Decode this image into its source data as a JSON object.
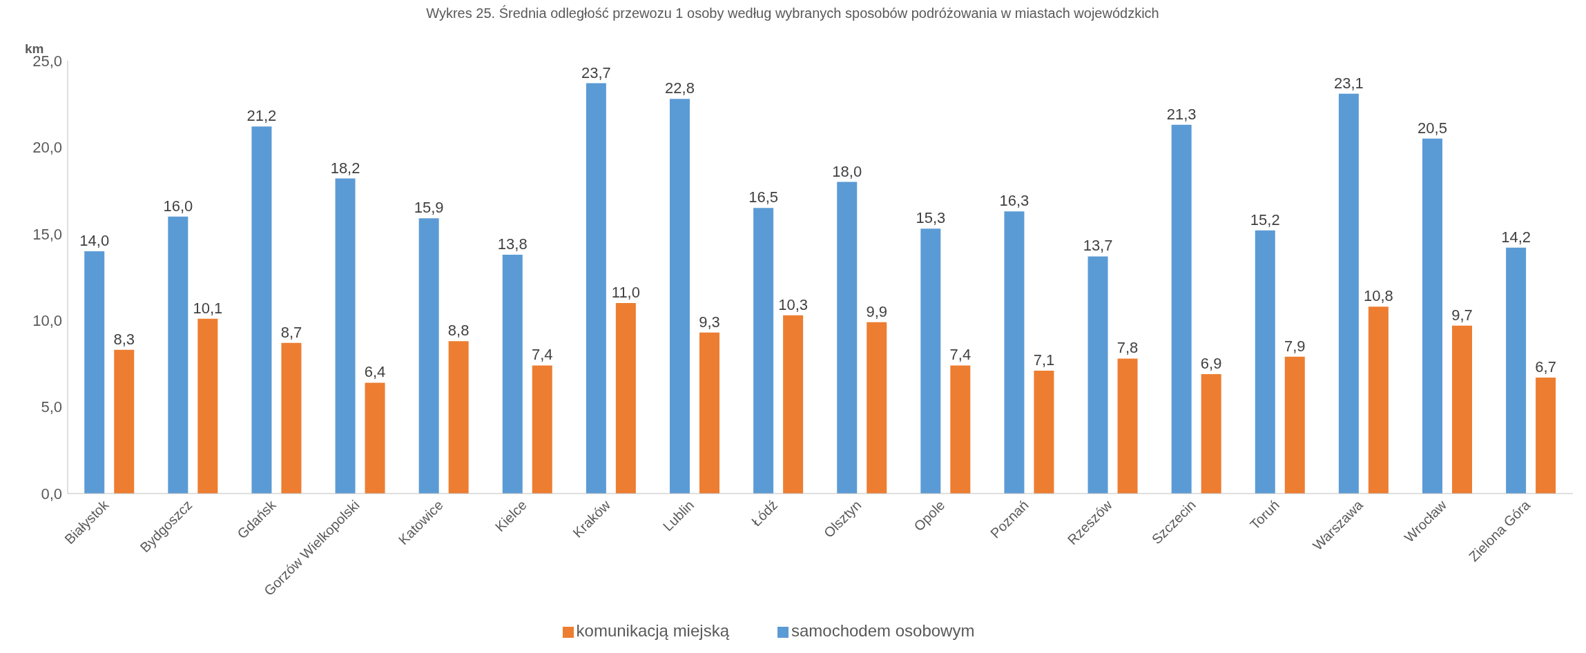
{
  "chart_data": {
    "type": "bar",
    "title": "Wykres 25. Średnia odległość przewozu 1 osoby według wybranych sposobów podróżowania w miastach wojewódzkich",
    "ylabel": "km",
    "categories": [
      "Białystok",
      "Bydgoszcz",
      "Gdańsk",
      "Gorzów Wielkopolski",
      "Katowice",
      "Kielce",
      "Kraków",
      "Lublin",
      "Łódź",
      "Olsztyn",
      "Opole",
      "Poznań",
      "Rzeszów",
      "Szczecin",
      "Toruń",
      "Warszawa",
      "Wrocław",
      "Zielona Góra"
    ],
    "series": [
      {
        "name": "samochodem osobowym",
        "color": "#5b9bd5",
        "values": [
          14.0,
          16.0,
          21.2,
          18.2,
          15.9,
          13.8,
          23.7,
          22.8,
          16.5,
          18.0,
          15.3,
          16.3,
          13.7,
          21.3,
          15.2,
          23.1,
          20.5,
          14.2
        ],
        "value_labels": [
          "14,0",
          "16,0",
          "21,2",
          "18,2",
          "15,9",
          "13,8",
          "23,7",
          "22,8",
          "16,5",
          "18,0",
          "15,3",
          "16,3",
          "13,7",
          "21,3",
          "15,2",
          "23,1",
          "20,5",
          "14,2"
        ]
      },
      {
        "name": "komunikacją miejską",
        "color": "#ed7d31",
        "values": [
          8.3,
          10.1,
          8.7,
          6.4,
          8.8,
          7.4,
          11.0,
          9.3,
          10.3,
          9.9,
          7.4,
          7.1,
          7.8,
          6.9,
          7.9,
          10.8,
          9.7,
          6.7
        ],
        "value_labels": [
          "8,3",
          "10,1",
          "8,7",
          "6,4",
          "8,8",
          "7,4",
          "11,0",
          "9,3",
          "10,3",
          "9,9",
          "7,4",
          "7,1",
          "7,8",
          "6,9",
          "7,9",
          "10,8",
          "9,7",
          "6,7"
        ]
      }
    ],
    "ylim": [
      0,
      25
    ],
    "yticks": [
      {
        "value": 0,
        "label": "0,0"
      },
      {
        "value": 5,
        "label": "5,0"
      },
      {
        "value": 10,
        "label": "10,0"
      },
      {
        "value": 15,
        "label": "15,0"
      },
      {
        "value": 20,
        "label": "20,0"
      },
      {
        "value": 25,
        "label": "25,0"
      }
    ],
    "grid": false,
    "legend": "bottom"
  }
}
